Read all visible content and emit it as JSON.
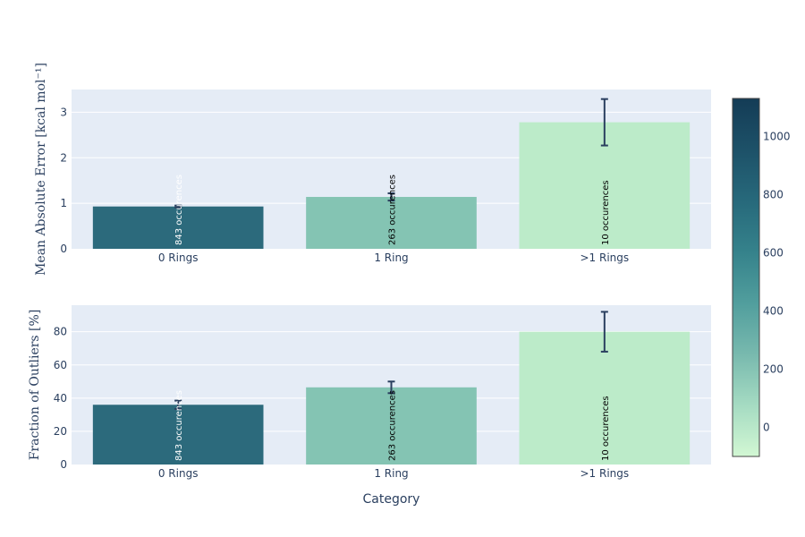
{
  "chart_data": {
    "type": "bar",
    "xlabel": "Category",
    "categories": [
      "0 Rings",
      "1 Ring",
      ">1 Rings"
    ],
    "counts": [
      843,
      263,
      10
    ],
    "bar_labels": [
      "843 occurences",
      "263 occurences",
      "10 occurences"
    ],
    "bar_colors": [
      "#2c6a7c",
      "#84c4b3",
      "#bcebc9"
    ],
    "bar_label_colors": [
      "#ffffff",
      "#000000",
      "#000000"
    ],
    "subplots": [
      {
        "ylabel": "Mean Absolute Error [kcal mol⁻¹]",
        "values": [
          0.93,
          1.14,
          2.78
        ],
        "errors": [
          0.02,
          0.08,
          0.51
        ],
        "ylim": [
          0,
          3.5
        ],
        "yticks": [
          0,
          1,
          2,
          3
        ]
      },
      {
        "ylabel": "Fraction of Outliers [%]",
        "values": [
          36.0,
          46.5,
          80.0
        ],
        "errors": [
          2.5,
          3.5,
          12.0
        ],
        "ylim": [
          0,
          96
        ],
        "yticks": [
          0,
          20,
          40,
          60,
          80
        ]
      }
    ],
    "colorbar": {
      "range": [
        -100,
        1130
      ],
      "ticks": [
        0,
        200,
        400,
        600,
        800,
        1000
      ],
      "colors": [
        "#d2f7d3",
        "#a5dbc2",
        "#78b9ae",
        "#519e9d",
        "#35828b",
        "#27697b",
        "#1d5168",
        "#143c56"
      ]
    },
    "grid": true
  }
}
